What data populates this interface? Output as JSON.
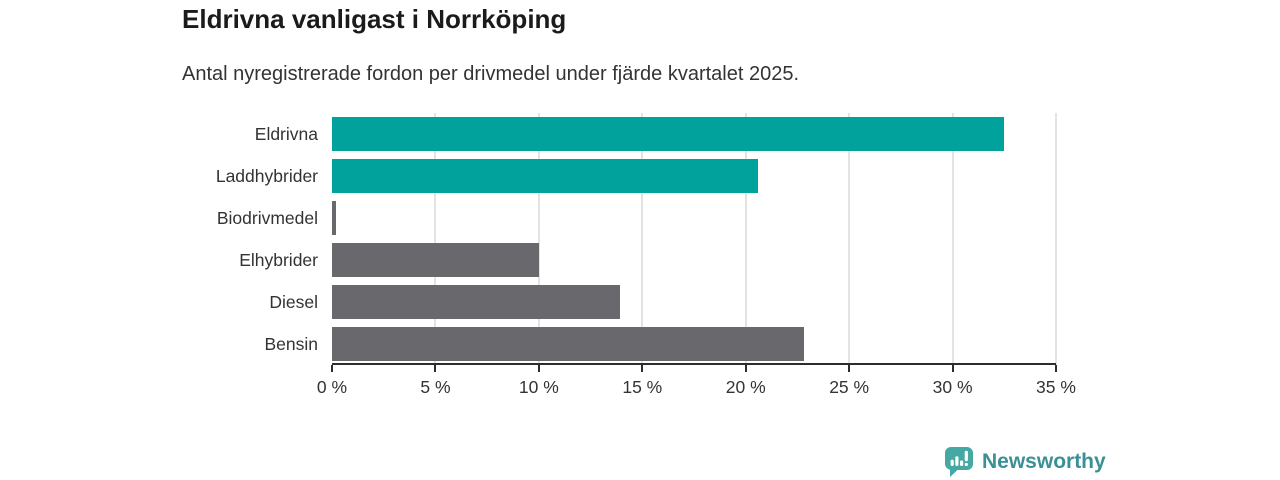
{
  "header": {
    "title": "Eldrivna vanligast i Norrköping",
    "subtitle": "Antal nyregistrerade fordon per drivmedel under fjärde kvartalet 2025."
  },
  "chart_data": {
    "type": "bar",
    "orientation": "horizontal",
    "title": "Eldrivna vanligast i Norrköping",
    "subtitle": "Antal nyregistrerade fordon per drivmedel under fjärde kvartalet 2025.",
    "categories": [
      "Eldrivna",
      "Laddhybrider",
      "Biodrivmedel",
      "Elhybrider",
      "Diesel",
      "Bensin"
    ],
    "values": [
      32.5,
      20.6,
      0.2,
      10.0,
      13.9,
      22.8
    ],
    "unit": "%",
    "bar_colors": [
      "#00a29b",
      "#00a29b",
      "#69696d",
      "#69696d",
      "#69696d",
      "#69696d"
    ],
    "highlight_color": "#00a29b",
    "base_color": "#69696d",
    "xlabel": "",
    "ylabel": "",
    "xlim": [
      0,
      35
    ],
    "x_ticks": [
      0,
      5,
      10,
      15,
      20,
      25,
      30,
      35
    ],
    "x_tick_labels": [
      "0 %",
      "5 %",
      "10 %",
      "15 %",
      "20 %",
      "25 %",
      "30 %",
      "35 %"
    ],
    "grid": "vertical-gridlines-on",
    "legend": "none"
  },
  "footer": {
    "brand": "Newsworthy",
    "brand_color": "#3a9096",
    "logo_icon": "newsworthy-bar-chart-bubble-icon",
    "logo_color": "#45a8a2"
  },
  "colors": {
    "background": "#ffffff",
    "gridline": "#e3e3e3",
    "axis": "#2d2d2d",
    "label_text": "#333333",
    "title_text": "#1b1b1b"
  }
}
